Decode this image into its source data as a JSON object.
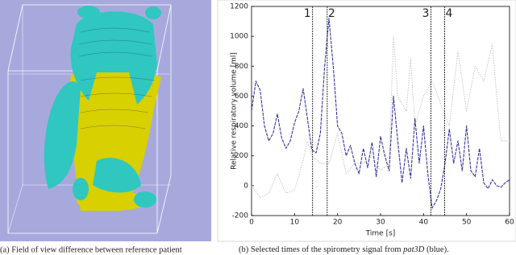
{
  "figure": {
    "caption_a": "(a) Field of view difference between reference patient",
    "caption_b": [
      "(b) Selected times of the spirometry signal from ",
      "pat3D",
      " (blue)."
    ]
  },
  "chart_data": {
    "type": "line",
    "xlabel": "Time [s]",
    "ylabel": "Relative respiratory volume [ml]",
    "xlim": [
      0,
      60
    ],
    "ylim": [
      -200,
      1200
    ],
    "xticks": [
      0,
      10,
      20,
      30,
      40,
      50,
      60
    ],
    "yticks": [
      -200,
      0,
      200,
      400,
      600,
      800,
      1000,
      1200
    ],
    "markers": [
      {
        "x": 14.2,
        "label": "1"
      },
      {
        "x": 17.6,
        "label": "2"
      },
      {
        "x": 41.7,
        "label": "3"
      },
      {
        "x": 44.9,
        "label": "4"
      }
    ],
    "series": [
      {
        "color": "#bdbdbd",
        "x": [
          0,
          2,
          4,
          6,
          8,
          10,
          12,
          13,
          14,
          16,
          18,
          20,
          22,
          24,
          26,
          28,
          30,
          32,
          33,
          34,
          36,
          37,
          38,
          40,
          42,
          44,
          46,
          48,
          50,
          52,
          54,
          56,
          57,
          58,
          60
        ],
        "values": [
          0,
          -80,
          -50,
          80,
          -50,
          -30,
          170,
          300,
          200,
          150,
          150,
          350,
          80,
          150,
          150,
          200,
          100,
          150,
          1000,
          600,
          500,
          850,
          400,
          600,
          700,
          550,
          400,
          900,
          500,
          800,
          700,
          950,
          600,
          300,
          300
        ]
      },
      {
        "color": "#35359c",
        "x": [
          0,
          1,
          2,
          3,
          4,
          5,
          6,
          7,
          8,
          9,
          10,
          11,
          12,
          13,
          14,
          15,
          16,
          17,
          18,
          19,
          20,
          21,
          22,
          23,
          24,
          25,
          26,
          27,
          28,
          29,
          30,
          31,
          32,
          33,
          34,
          35,
          36,
          37,
          38,
          39,
          40,
          41,
          42,
          43,
          44,
          45,
          46,
          47,
          48,
          49,
          50,
          51,
          52,
          53,
          54,
          55,
          56,
          57,
          58,
          59,
          60
        ],
        "values": [
          500,
          700,
          640,
          400,
          300,
          350,
          480,
          320,
          250,
          300,
          420,
          500,
          650,
          450,
          240,
          220,
          350,
          800,
          1120,
          800,
          400,
          350,
          200,
          270,
          150,
          80,
          250,
          120,
          290,
          60,
          330,
          200,
          100,
          600,
          300,
          20,
          250,
          50,
          450,
          150,
          400,
          80,
          -150,
          -100,
          -20,
          150,
          380,
          150,
          300,
          100,
          400,
          100,
          60,
          250,
          20,
          -20,
          40,
          0,
          -10,
          20,
          40
        ]
      }
    ]
  }
}
